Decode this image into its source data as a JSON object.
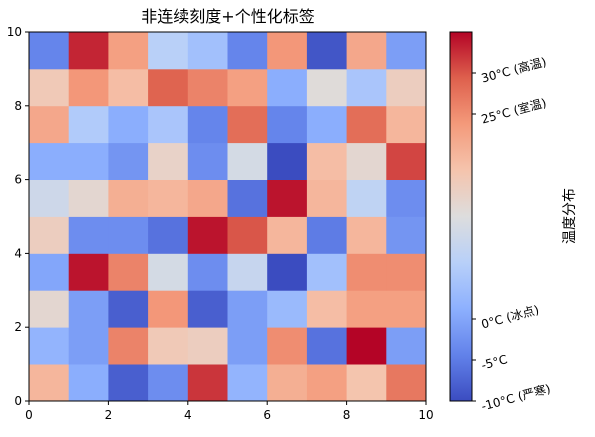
{
  "chart_data": {
    "type": "heatmap",
    "title": "非连续刻度+个性化标签",
    "x_ticks": [
      0,
      2,
      4,
      6,
      8,
      10
    ],
    "y_ticks": [
      0,
      2,
      4,
      6,
      8,
      10
    ],
    "xlim": [
      0,
      10
    ],
    "ylim": [
      0,
      10
    ],
    "colormap": "coolwarm",
    "value_range": [
      -10,
      35
    ],
    "grid": "rows bottom to top (y=0..1 first), columns left to right",
    "grid_values": [
      [
        20,
        1,
        -8,
        -3,
        32,
        2,
        21,
        23,
        18,
        27
      ],
      [
        2,
        -1,
        26,
        17,
        16,
        -1,
        25,
        -6,
        35,
        -1
      ],
      [
        14,
        -1,
        -8,
        24,
        -8,
        -1,
        3,
        19,
        23,
        23
      ],
      [
        0,
        34,
        26,
        11,
        -3,
        9,
        -10,
        4,
        25,
        25
      ],
      [
        16,
        -3,
        -3,
        -6,
        34,
        30,
        20,
        -5,
        20,
        -2
      ],
      [
        10,
        14,
        21,
        20,
        22,
        -6,
        34,
        20,
        8,
        -3
      ],
      [
        1,
        1,
        -2,
        15,
        -3,
        11,
        -10,
        19,
        14,
        31
      ],
      [
        22,
        6,
        1,
        5,
        -4,
        28,
        -4,
        1,
        28,
        20
      ],
      [
        17,
        24,
        19,
        29,
        26,
        23,
        1,
        13,
        5,
        16
      ],
      [
        -4,
        33,
        23,
        7,
        4,
        -4,
        24,
        -9,
        22,
        -1
      ]
    ],
    "colorbar": {
      "label": "温度分布",
      "range": [
        -10,
        35
      ],
      "ticks": [
        {
          "value": 30,
          "label": "30°C (高温)"
        },
        {
          "value": 25,
          "label": "25°C (室温)"
        },
        {
          "value": 0,
          "label": "0°C (冰点)"
        },
        {
          "value": -5,
          "label": "-5°C"
        },
        {
          "value": -10,
          "label": "-10°C (严寒)"
        }
      ]
    }
  }
}
